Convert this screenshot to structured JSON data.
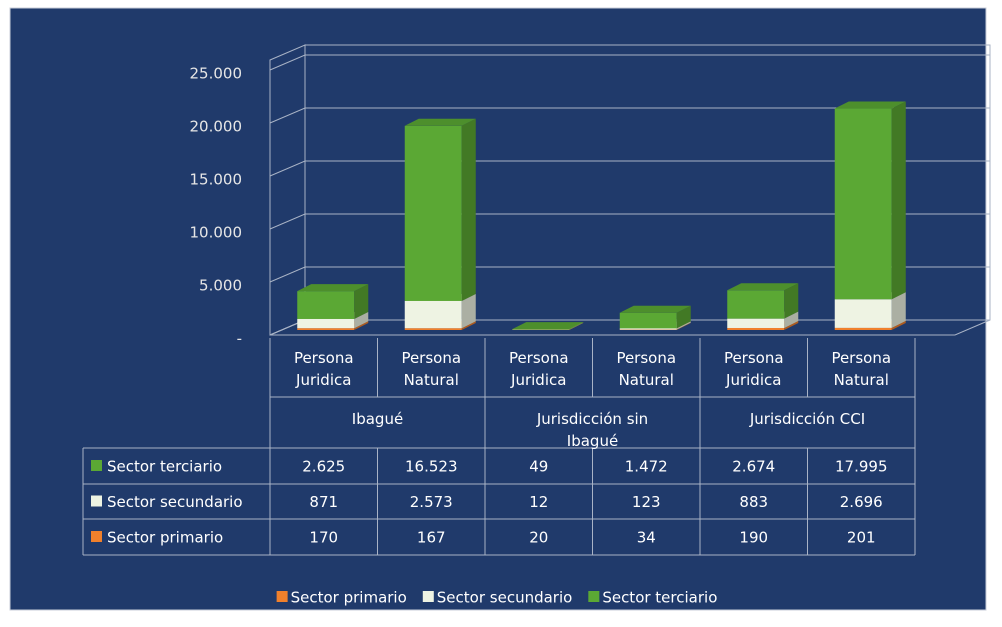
{
  "chart_data": {
    "type": "bar3d_stacked_table",
    "groups": [
      "Ibagué",
      "Jurisdicción sin Ibagué",
      "Jurisdicción CCI"
    ],
    "categories": [
      "Persona Juridica",
      "Persona Natural",
      "Persona Juridica",
      "Persona Natural",
      "Persona Juridica",
      "Persona Natural"
    ],
    "series": [
      {
        "name": "Sector primario",
        "color": "#f0802c",
        "values": [
          170,
          167,
          20,
          34,
          190,
          201
        ],
        "value_labels": [
          "170",
          "167",
          "20",
          "34",
          "190",
          "201"
        ]
      },
      {
        "name": "Sector secundario",
        "color": "#eef3e3",
        "values": [
          871,
          2573,
          12,
          123,
          883,
          2696
        ],
        "value_labels": [
          "871",
          "2.573",
          "12",
          "123",
          "883",
          "2.696"
        ]
      },
      {
        "name": "Sector terciario",
        "color": "#5ba834",
        "values": [
          2625,
          16523,
          49,
          1472,
          2674,
          17995
        ],
        "value_labels": [
          "2.625",
          "16.523",
          "49",
          "1.472",
          "2.674",
          "17.995"
        ]
      }
    ],
    "ylim": [
      0,
      25000
    ],
    "yticks": [
      {
        "value": 0,
        "label": "-"
      },
      {
        "value": 5000,
        "label": "5.000"
      },
      {
        "value": 10000,
        "label": "10.000"
      },
      {
        "value": 15000,
        "label": "15.000"
      },
      {
        "value": 20000,
        "label": "20.000"
      },
      {
        "value": 25000,
        "label": "25.000"
      }
    ],
    "grid": true
  }
}
